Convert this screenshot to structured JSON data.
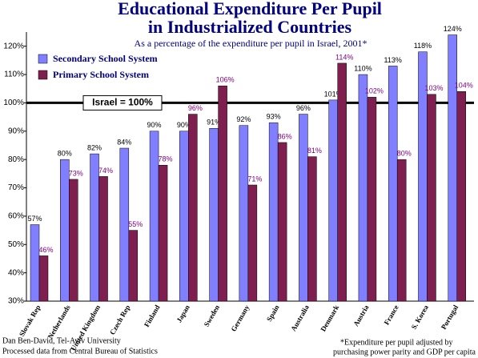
{
  "chart_data": {
    "type": "bar",
    "title": [
      "Educational Expenditure Per Pupil",
      "in Industrialized Countries"
    ],
    "subtitle": "As a percentage of the expenditure per pupil in Israel, 2001*",
    "categories": [
      "Slovak Rep",
      "Netherlands",
      "United Kingdom",
      "Czech Rep",
      "Finland",
      "Japan",
      "Sweden",
      "Germany",
      "Spain",
      "Australia",
      "Denmark",
      "Austria",
      "France",
      "S. Korea",
      "Portugal"
    ],
    "series": [
      {
        "name": "Secondary School System",
        "color": "#7f7fff",
        "values": [
          57,
          80,
          82,
          84,
          90,
          90,
          91,
          92,
          93,
          96,
          101,
          110,
          113,
          118,
          124
        ],
        "value_labels": [
          "57%",
          "80%",
          "82%",
          "84%",
          "90%",
          "90%",
          "91%",
          "92%",
          "93%",
          "96%",
          "101%",
          "110%",
          "113%",
          "118%",
          "124%"
        ]
      },
      {
        "name": "Primary School System",
        "color": "#7f1f4f",
        "values": [
          46,
          73,
          74,
          55,
          78,
          96,
          106,
          71,
          86,
          81,
          114,
          102,
          80,
          103,
          104
        ],
        "value_labels": [
          "46%",
          "73%",
          "74%",
          "55%",
          "78%",
          "96%",
          "106%",
          "71%",
          "86%",
          "81%",
          "114%",
          "102%",
          "80%",
          "103%",
          "104%"
        ]
      }
    ],
    "ylim": [
      30,
      125
    ],
    "yticks": [
      {
        "value": 30,
        "label": "30%"
      },
      {
        "value": 40,
        "label": "40%"
      },
      {
        "value": 50,
        "label": "50%"
      },
      {
        "value": 60,
        "label": "60%"
      },
      {
        "value": 70,
        "label": "70%"
      },
      {
        "value": 80,
        "label": "80%"
      },
      {
        "value": 90,
        "label": "90%"
      },
      {
        "value": 100,
        "label": "100%"
      },
      {
        "value": 110,
        "label": "110%"
      },
      {
        "value": 120,
        "label": "120%"
      }
    ],
    "reference_line": {
      "value": 100,
      "label": "Israel = 100%"
    },
    "grid": false,
    "source": [
      "Dan Ben-David, Tel-Aviv University",
      "Processed data from Central Bureau of Statistics"
    ],
    "footnote": [
      "*Expenditure per pupil adjusted by",
      "purchasing power parity and GDP per capita"
    ]
  }
}
